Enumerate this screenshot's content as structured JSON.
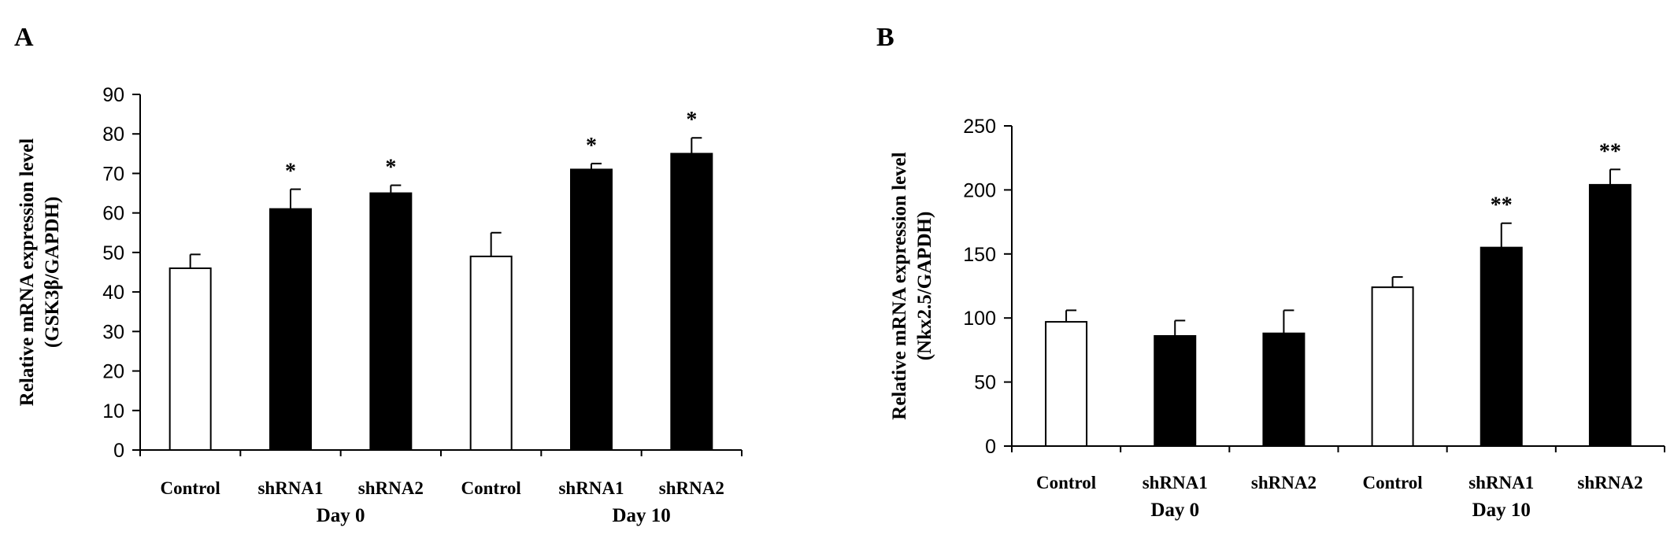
{
  "chart_data": [
    {
      "panel": "A",
      "type": "bar",
      "categories": [
        "Control",
        "shRNA1",
        "shRNA2",
        "Control",
        "shRNA1",
        "shRNA2"
      ],
      "groups": [
        {
          "label": "Day 0",
          "members": [
            1,
            2
          ]
        },
        {
          "label": "Day 10",
          "members": [
            4,
            5
          ]
        }
      ],
      "values": [
        46,
        61,
        65,
        49,
        71,
        75
      ],
      "errors": [
        3.5,
        5,
        2,
        6,
        1.5,
        4
      ],
      "fills": [
        "#ffffff",
        "#000000",
        "#000000",
        "#ffffff",
        "#000000",
        "#000000"
      ],
      "significance": [
        "",
        "*",
        "*",
        "",
        "*",
        "*"
      ],
      "ylabel_line1": "Relative mRNA expression level",
      "ylabel_line2": "(GSK3β/GAPDH)",
      "ylim": [
        0,
        90
      ],
      "yticks": [
        0,
        10,
        20,
        30,
        40,
        50,
        60,
        70,
        80,
        90
      ],
      "grid": false,
      "legend": "none"
    },
    {
      "panel": "B",
      "type": "bar",
      "categories": [
        "Control",
        "shRNA1",
        "shRNA2",
        "Control",
        "shRNA1",
        "shRNA2"
      ],
      "groups": [
        {
          "label": "Day 0",
          "members": [
            1
          ]
        },
        {
          "label": "Day 10",
          "members": [
            4
          ]
        }
      ],
      "values": [
        97,
        86,
        88,
        124,
        155,
        204
      ],
      "errors": [
        9,
        12,
        18,
        8,
        19,
        12
      ],
      "fills": [
        "#ffffff",
        "#000000",
        "#000000",
        "#ffffff",
        "#000000",
        "#000000"
      ],
      "significance": [
        "",
        "",
        "",
        "",
        "**",
        "**"
      ],
      "ylabel_line1": "Relative mRNA expression level",
      "ylabel_line2": "(Nkx2.5/GAPDH)",
      "ylim": [
        0,
        250
      ],
      "yticks": [
        0,
        50,
        100,
        150,
        200,
        250
      ],
      "grid": false,
      "legend": "none"
    }
  ],
  "colors": {
    "axis": "#000000",
    "bar_outline": "#000000",
    "background": "#ffffff"
  }
}
